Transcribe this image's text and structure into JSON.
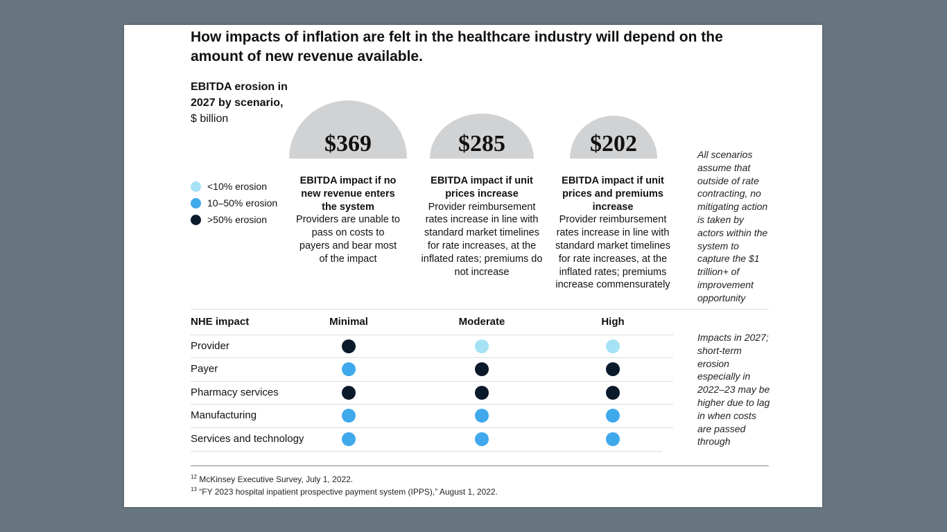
{
  "title": "How impacts of inflation are felt in the healthcare industry will depend on the amount of new revenue available.",
  "subtitle": {
    "bold": "EBITDA erosion in 2027 by scenario,",
    "unit": "$ billion"
  },
  "colors": {
    "low": "#a6e2f5",
    "mid": "#3fa9ec",
    "high": "#0b1a2a",
    "dome": "#d0d2d4",
    "background": "#66757f"
  },
  "legend": [
    {
      "label": "<10% erosion",
      "level": "low"
    },
    {
      "label": "10–50% erosion",
      "level": "mid"
    },
    {
      "label": ">50% erosion",
      "level": "high"
    }
  ],
  "scenarios": [
    {
      "value": "$369",
      "heading": "EBITDA impact if no new revenue enters the system",
      "body": "Providers are unable to pass on costs to payers and bear most of the impact"
    },
    {
      "value": "$285",
      "heading": "EBITDA impact if unit prices increase",
      "body": "Provider reimbursement rates increase in line with standard market timelines for rate increases, at the inflated rates; premiums do not increase"
    },
    {
      "value": "$202",
      "heading": "EBITDA impact if unit prices and premiums increase",
      "body": "Provider reimbursement rates increase in line with standard market timelines for rate increases, at the inflated rates; premiums increase commensurately"
    }
  ],
  "side_note_1": "All scenarios assume that outside of rate contracting, no mitigating action is taken by actors within the system to capture the $1 trillion+ of improvement opportunity",
  "side_note_2": "Impacts in 2027; short-term erosion especially in 2022–23 may be higher due to lag in when costs are passed through",
  "table": {
    "header": "NHE impact",
    "columns": [
      "Minimal",
      "Moderate",
      "High"
    ],
    "rows": [
      {
        "label": "Provider",
        "levels": [
          "high",
          "low",
          "low"
        ]
      },
      {
        "label": "Payer",
        "levels": [
          "mid",
          "high",
          "high"
        ]
      },
      {
        "label": "Pharmacy services",
        "levels": [
          "high",
          "high",
          "high"
        ]
      },
      {
        "label": "Manufacturing",
        "levels": [
          "mid",
          "mid",
          "mid"
        ]
      },
      {
        "label": "Services and technology",
        "levels": [
          "mid",
          "mid",
          "mid"
        ]
      }
    ]
  },
  "footnotes": [
    {
      "num": "12",
      "text": "McKinsey Executive Survey, July 1, 2022."
    },
    {
      "num": "13",
      "text": "“FY 2023 hospital inpatient prospective payment system (IPPS),” August 1, 2022."
    }
  ],
  "chart_data": {
    "type": "bar",
    "title": "How impacts of inflation are felt in the healthcare industry will depend on the amount of new revenue available.",
    "ylabel": "EBITDA erosion in 2027 by scenario, $ billion",
    "categories": [
      "EBITDA impact if no new revenue enters the system",
      "EBITDA impact if unit prices increase",
      "EBITDA impact if unit prices and premiums increase"
    ],
    "values": [
      369,
      285,
      202
    ]
  }
}
